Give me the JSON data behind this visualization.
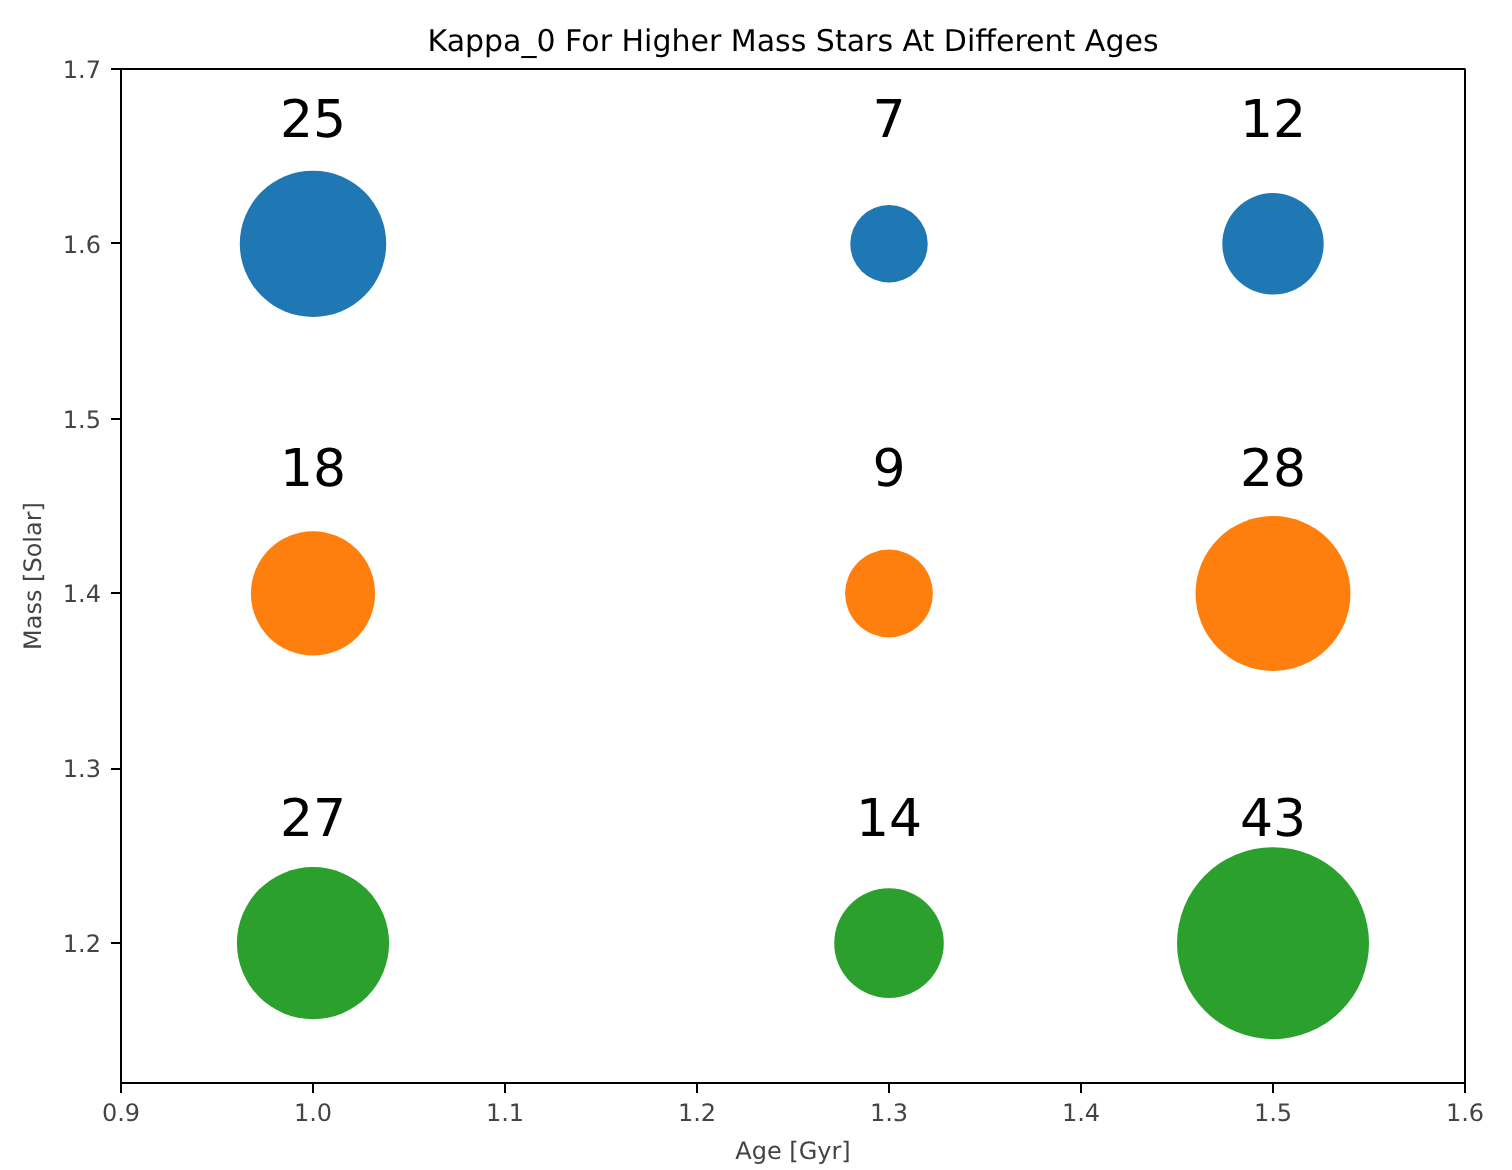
{
  "chart_data": {
    "type": "bubble",
    "title": "Kappa_0 For Higher Mass Stars At Different Ages",
    "xlabel": "Age [Gyr]",
    "ylabel": "Mass [Solar]",
    "xlim": [
      0.9,
      1.6
    ],
    "ylim": [
      1.12,
      1.7
    ],
    "xticks": [
      {
        "value": 0.9,
        "label": "0.9"
      },
      {
        "value": 1.0,
        "label": "1.0"
      },
      {
        "value": 1.1,
        "label": "1.1"
      },
      {
        "value": 1.2,
        "label": "1.2"
      },
      {
        "value": 1.3,
        "label": "1.3"
      },
      {
        "value": 1.4,
        "label": "1.4"
      },
      {
        "value": 1.5,
        "label": "1.5"
      },
      {
        "value": 1.6,
        "label": "1.6"
      }
    ],
    "yticks": [
      {
        "value": 1.2,
        "label": "1.2"
      },
      {
        "value": 1.3,
        "label": "1.3"
      },
      {
        "value": 1.4,
        "label": "1.4"
      },
      {
        "value": 1.5,
        "label": "1.5"
      },
      {
        "value": 1.6,
        "label": "1.6"
      },
      {
        "value": 1.7,
        "label": "1.7"
      }
    ],
    "grid": false,
    "marker": "circle",
    "series": [
      {
        "color": "#1f77b4",
        "x": [
          1.0,
          1.3,
          1.5
        ],
        "values": [
          1.6,
          1.6,
          1.6
        ],
        "sizes": [
          25,
          7,
          12
        ],
        "value_labels": [
          "25",
          "7",
          "12"
        ]
      },
      {
        "color": "#ff7f0e",
        "x": [
          1.0,
          1.3,
          1.5
        ],
        "values": [
          1.4,
          1.4,
          1.4
        ],
        "sizes": [
          18,
          9,
          28
        ],
        "value_labels": [
          "18",
          "9",
          "28"
        ]
      },
      {
        "color": "#2ca02c",
        "x": [
          1.0,
          1.3,
          1.5
        ],
        "values": [
          1.2,
          1.2,
          1.2
        ],
        "sizes": [
          27,
          14,
          43
        ],
        "value_labels": [
          "27",
          "14",
          "43"
        ]
      }
    ]
  }
}
